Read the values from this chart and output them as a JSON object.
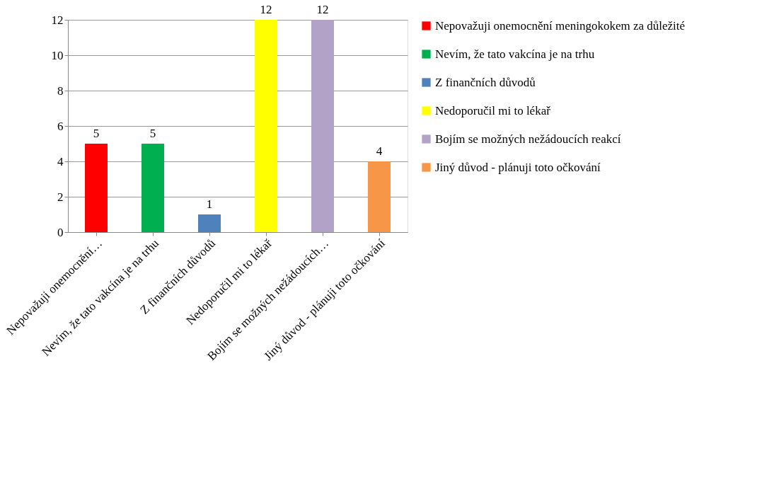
{
  "chart_data": {
    "type": "bar",
    "categories": [
      "Nepovažuji onemocnění…",
      "Nevím, že tato vakcína je na trhu",
      "Z finančních důvodů",
      "Nedoporučil mi to lékař",
      "Bojím se možných nežádoucích…",
      "Jiný důvod - plánuji toto očkování"
    ],
    "series": [
      {
        "name": "Nepovažuji onemocnění meningokokem za důležité",
        "color": "#ff0000",
        "values": [
          5,
          null,
          null,
          null,
          null,
          null
        ]
      },
      {
        "name": "Nevím, že tato vakcína je na trhu",
        "color": "#00b050",
        "values": [
          null,
          5,
          null,
          null,
          null,
          null
        ]
      },
      {
        "name": "Z finančních důvodů",
        "color": "#4f81bd",
        "values": [
          null,
          null,
          1,
          null,
          null,
          null
        ]
      },
      {
        "name": "Nedoporučil mi to lékař",
        "color": "#ffff00",
        "values": [
          null,
          null,
          null,
          12,
          null,
          null
        ]
      },
      {
        "name": "Bojím se možných nežádoucích reakcí",
        "color": "#b3a2c7",
        "values": [
          null,
          null,
          null,
          null,
          12,
          null
        ]
      },
      {
        "name": "Jiný důvod - plánuji toto očkování",
        "color": "#f79646",
        "values": [
          null,
          null,
          null,
          null,
          null,
          4
        ]
      }
    ],
    "ylim": [
      0,
      12
    ],
    "yticks": [
      0,
      2,
      4,
      6,
      8,
      10,
      12
    ],
    "grid": "y",
    "legend": "right",
    "data_labels": true
  }
}
